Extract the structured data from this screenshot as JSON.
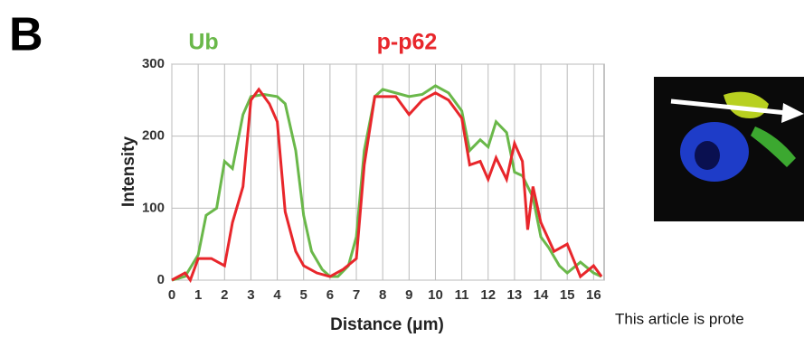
{
  "panel_label": "B",
  "chart_data": {
    "type": "line",
    "xlabel": "Distance (μm)",
    "ylabel": "Intensity",
    "xlim": [
      0,
      16.4
    ],
    "ylim": [
      0,
      300
    ],
    "xticks": [
      0,
      1,
      2,
      3,
      4,
      5,
      6,
      7,
      8,
      9,
      10,
      11,
      12,
      13,
      14,
      15,
      16
    ],
    "yticks": [
      0,
      100,
      200,
      300
    ],
    "grid": true,
    "series": [
      {
        "name": "Ub",
        "color": "#6ab84a",
        "x": [
          0,
          0.5,
          1,
          1.3,
          1.7,
          2,
          2.3,
          2.7,
          3,
          3.5,
          4,
          4.3,
          4.7,
          5,
          5.3,
          5.7,
          6,
          6.3,
          6.7,
          7,
          7.3,
          7.7,
          8,
          8.5,
          9,
          9.5,
          10,
          10.5,
          11,
          11.3,
          11.7,
          12,
          12.3,
          12.7,
          13,
          13.3,
          13.7,
          14,
          14.3,
          14.7,
          15,
          15.5,
          16,
          16.3
        ],
        "values": [
          0,
          5,
          35,
          90,
          100,
          165,
          155,
          230,
          255,
          258,
          255,
          245,
          180,
          90,
          40,
          15,
          5,
          5,
          20,
          60,
          180,
          255,
          265,
          260,
          255,
          258,
          270,
          260,
          235,
          180,
          195,
          185,
          220,
          205,
          150,
          145,
          115,
          60,
          45,
          20,
          10,
          25,
          10,
          5
        ]
      },
      {
        "name": "p-p62",
        "color": "#e8262b",
        "x": [
          0,
          0.5,
          0.7,
          1,
          1.5,
          2,
          2.3,
          2.7,
          3,
          3.3,
          3.7,
          4,
          4.3,
          4.7,
          5,
          5.5,
          6,
          6.5,
          7,
          7.3,
          7.7,
          8,
          8.5,
          9,
          9.5,
          10,
          10.5,
          11,
          11.3,
          11.7,
          12,
          12.3,
          12.7,
          13,
          13.3,
          13.5,
          13.7,
          14,
          14.5,
          15,
          15.5,
          16,
          16.3
        ],
        "values": [
          0,
          10,
          0,
          30,
          30,
          20,
          80,
          130,
          250,
          265,
          245,
          220,
          95,
          40,
          20,
          10,
          5,
          15,
          30,
          160,
          255,
          255,
          255,
          230,
          250,
          260,
          250,
          225,
          160,
          165,
          140,
          170,
          140,
          190,
          165,
          70,
          130,
          80,
          40,
          50,
          5,
          20,
          5
        ]
      }
    ]
  },
  "footer": "This article is prote"
}
